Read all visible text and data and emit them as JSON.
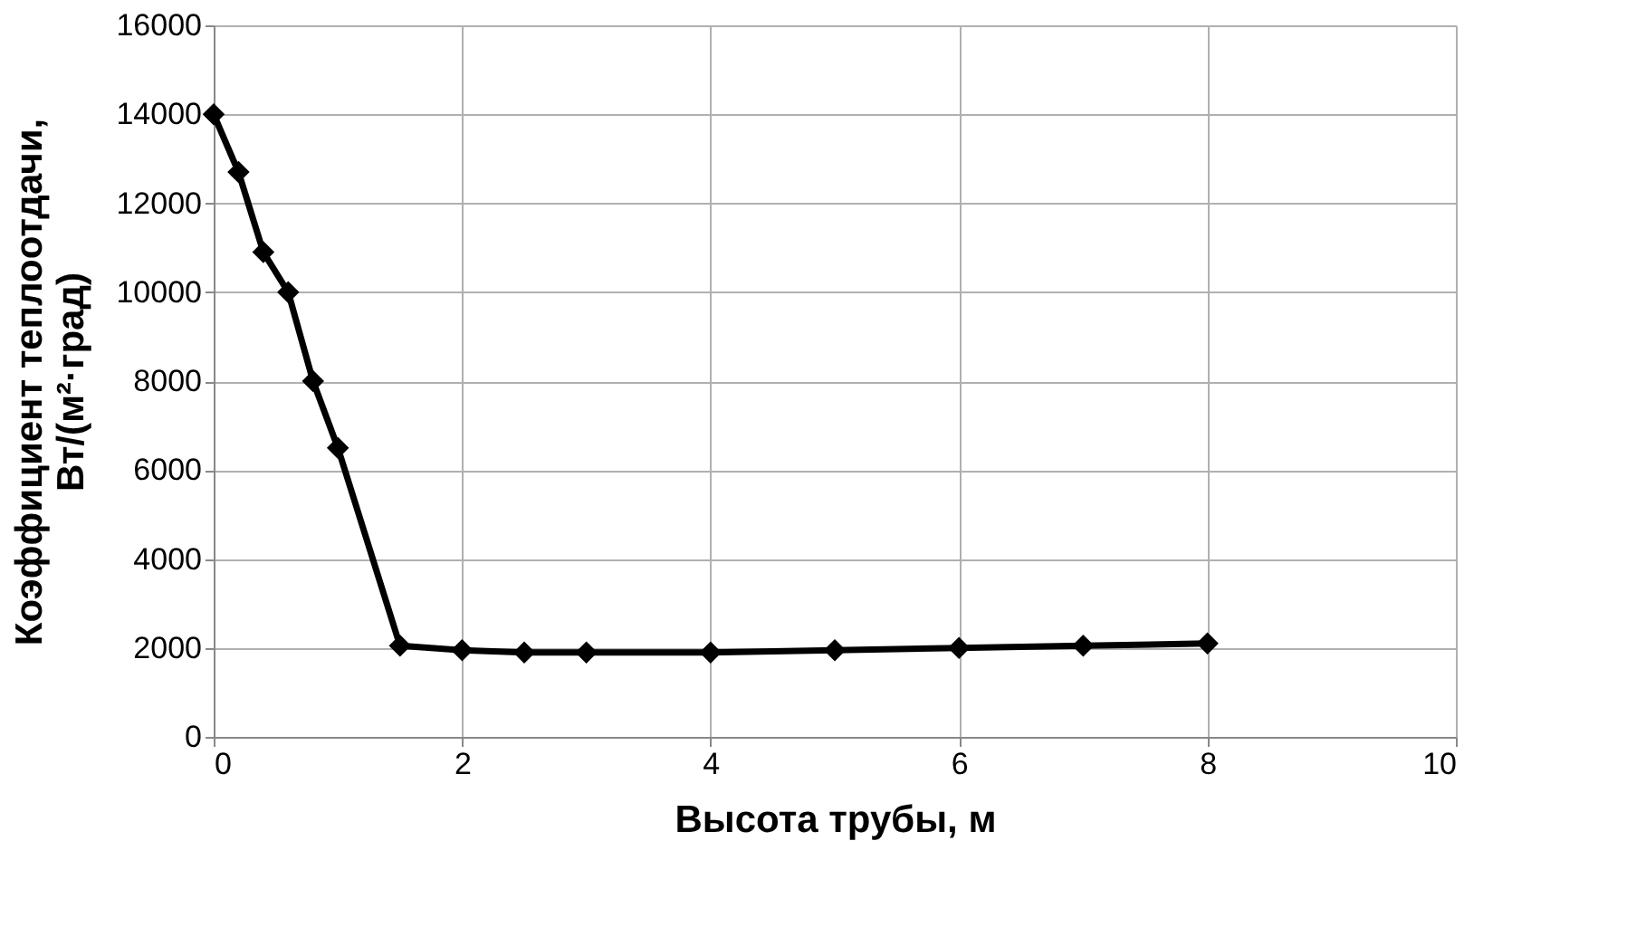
{
  "chart_data": {
    "type": "line",
    "xlabel": "Высота трубы, м",
    "ylabel": "Коэффициент теплоотдачи,\nВт/(м²·град)",
    "x": [
      0,
      0.2,
      0.4,
      0.6,
      0.8,
      1.0,
      1.5,
      2,
      2.5,
      3,
      4,
      5,
      6,
      7,
      8
    ],
    "series": [
      {
        "color": "#000000",
        "values": [
          14000,
          12700,
          10900,
          10000,
          8000,
          6500,
          2050,
          1950,
          1900,
          1900,
          1900,
          1950,
          2000,
          2050,
          2100
        ]
      }
    ],
    "xlim": [
      0,
      10
    ],
    "xticks": [
      0,
      2,
      4,
      6,
      8,
      10
    ],
    "ylim": [
      0,
      16000
    ],
    "yticks": [
      0,
      2000,
      4000,
      6000,
      8000,
      10000,
      12000,
      14000,
      16000
    ],
    "grid": true,
    "marker": "diamond",
    "line_style": "solid"
  }
}
